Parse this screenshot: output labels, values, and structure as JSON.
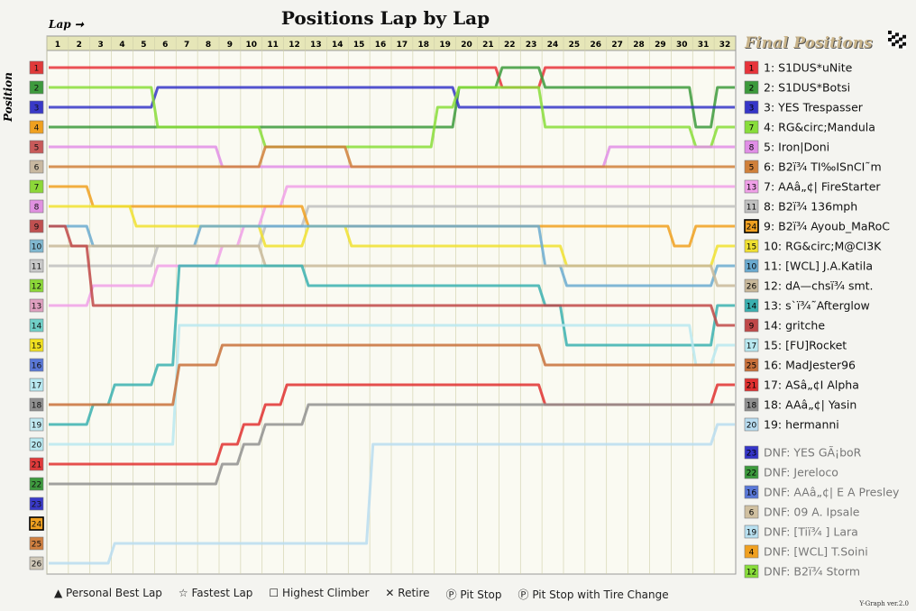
{
  "header": {
    "title": "Positions Lap by Lap",
    "lap_label": "Lap",
    "position_label": "Position",
    "final_title": "Final Positions",
    "version": "Y-Graph ver.2.0"
  },
  "legend": {
    "personal_best": "Personal Best Lap",
    "fastest": "Fastest Lap",
    "climber": "Highest Climber",
    "retire": "Retire",
    "pit": "Pit Stop",
    "pit_tire": "Pit Stop with Tire Change"
  },
  "chart_data": {
    "type": "line",
    "title": "Positions Lap by Lap",
    "xlabel": "Lap",
    "ylabel": "Position",
    "laps": [
      1,
      2,
      3,
      4,
      5,
      6,
      7,
      8,
      9,
      10,
      11,
      12,
      13,
      14,
      15,
      16,
      17,
      18,
      19,
      20,
      21,
      22,
      23,
      24,
      25,
      26,
      27,
      28,
      29,
      30,
      31,
      32
    ],
    "position_labels": [
      1,
      2,
      3,
      4,
      5,
      6,
      7,
      8,
      9,
      10,
      11,
      12,
      13,
      14,
      15,
      16,
      17,
      18,
      19,
      20,
      21,
      22,
      23,
      24,
      25,
      26
    ],
    "start_colors": [
      "#e03a3a",
      "#3e9a3e",
      "#3939c8",
      "#f0a020",
      "#c85a5a",
      "#c8b8a0",
      "#8cd838",
      "#e090e0",
      "#c05050",
      "#80b8d0",
      "#c8c8c8",
      "#8cd838",
      "#e0a0c0",
      "#70d0c8",
      "#f0e020",
      "#5a78d8",
      "#b8e8f0",
      "#909090",
      "#c0e8f0",
      "#b8e8f0",
      "#e03a3a",
      "#3e9a3e",
      "#3939c8",
      "#f0a020",
      "#d08040",
      "#d0c8b8"
    ],
    "start_boxed": 24,
    "series": [
      {
        "name": "S1DUS*uNite",
        "color": "#e8333a",
        "pos": [
          1,
          1,
          1,
          1,
          1,
          1,
          1,
          1,
          1,
          1,
          1,
          1,
          1,
          1,
          1,
          1,
          1,
          1,
          1,
          1,
          1,
          2,
          2,
          1,
          1,
          1,
          1,
          1,
          1,
          1,
          1,
          1
        ]
      },
      {
        "name": "S1DUS*Botsi",
        "color": "#3c9a3c",
        "pos": [
          4,
          4,
          4,
          4,
          4,
          4,
          4,
          4,
          4,
          4,
          4,
          4,
          4,
          4,
          4,
          4,
          4,
          4,
          4,
          2,
          2,
          1,
          1,
          2,
          2,
          2,
          2,
          2,
          2,
          2,
          4,
          2
        ]
      },
      {
        "name": "YES Trespasser",
        "color": "#3535c8",
        "pos": [
          3,
          3,
          3,
          3,
          3,
          2,
          2,
          2,
          2,
          2,
          2,
          2,
          2,
          2,
          2,
          2,
          2,
          2,
          2,
          3,
          3,
          3,
          3,
          3,
          3,
          3,
          3,
          3,
          3,
          3,
          3,
          3
        ]
      },
      {
        "name": "RG&circ;Mandula",
        "color": "#88dd3a",
        "pos": [
          2,
          2,
          2,
          2,
          2,
          4,
          4,
          4,
          4,
          4,
          5,
          5,
          5,
          5,
          5,
          5,
          5,
          5,
          3,
          2,
          2,
          2,
          2,
          4,
          4,
          4,
          4,
          4,
          4,
          4,
          5,
          4
        ]
      },
      {
        "name": "Iron|Doni",
        "color": "#e08ee6",
        "pos": [
          5,
          5,
          5,
          5,
          5,
          5,
          5,
          5,
          6,
          6,
          6,
          6,
          6,
          6,
          6,
          6,
          6,
          6,
          6,
          6,
          6,
          6,
          6,
          6,
          6,
          6,
          5,
          5,
          5,
          5,
          5,
          5
        ]
      },
      {
        "name": "B2ï¾ TI‰ISnCI˜m",
        "color": "#d0803a",
        "pos": [
          6,
          6,
          6,
          6,
          6,
          6,
          6,
          6,
          6,
          6,
          5,
          5,
          5,
          5,
          6,
          6,
          6,
          6,
          6,
          6,
          6,
          6,
          6,
          6,
          6,
          6,
          6,
          6,
          6,
          6,
          6,
          6
        ]
      },
      {
        "name": "AAâ„¢| FireStarter",
        "color": "#f0a0e8",
        "pos": [
          13,
          13,
          12,
          12,
          12,
          11,
          11,
          11,
          10,
          9,
          8,
          7,
          7,
          7,
          7,
          7,
          7,
          7,
          7,
          7,
          7,
          7,
          7,
          7,
          7,
          7,
          7,
          7,
          7,
          7,
          7,
          7
        ]
      },
      {
        "name": "B2ï¾ 136mph",
        "color": "#c0c0c0",
        "pos": [
          11,
          11,
          11,
          11,
          11,
          10,
          10,
          10,
          10,
          10,
          9,
          9,
          8,
          8,
          8,
          8,
          8,
          8,
          8,
          8,
          8,
          8,
          8,
          8,
          8,
          8,
          8,
          8,
          8,
          8,
          8,
          8
        ]
      },
      {
        "name": "B2ï¾ Ayoub_MaRoC",
        "color": "#f0a020",
        "pos": [
          7,
          7,
          8,
          8,
          8,
          8,
          8,
          8,
          8,
          8,
          8,
          8,
          9,
          9,
          9,
          9,
          9,
          9,
          9,
          9,
          9,
          9,
          9,
          9,
          9,
          9,
          9,
          9,
          9,
          10,
          9,
          9
        ]
      },
      {
        "name": "RG&circ;M@CI3K",
        "color": "#f0e030",
        "pos": [
          8,
          8,
          8,
          8,
          9,
          9,
          9,
          9,
          9,
          9,
          10,
          10,
          9,
          9,
          10,
          10,
          10,
          10,
          10,
          10,
          10,
          10,
          10,
          10,
          11,
          11,
          11,
          11,
          11,
          11,
          11,
          10
        ]
      },
      {
        "name": "[WCL] J.A.Katila",
        "color": "#6aaad0",
        "pos": [
          9,
          9,
          10,
          10,
          10,
          10,
          10,
          9,
          9,
          9,
          9,
          9,
          9,
          9,
          9,
          9,
          9,
          9,
          9,
          9,
          9,
          9,
          9,
          11,
          12,
          12,
          12,
          12,
          12,
          12,
          12,
          11
        ]
      },
      {
        "name": "dA—chsï¾ smt.",
        "color": "#c8b89a",
        "pos": [
          10,
          10,
          10,
          10,
          10,
          10,
          10,
          10,
          10,
          10,
          11,
          11,
          11,
          11,
          11,
          11,
          11,
          11,
          11,
          11,
          11,
          11,
          11,
          11,
          11,
          11,
          11,
          11,
          11,
          11,
          11,
          12
        ]
      },
      {
        "name": "s`ï¾˜Afterglow",
        "color": "#3ab0b0",
        "pos": [
          19,
          19,
          18,
          17,
          17,
          16,
          11,
          11,
          11,
          11,
          11,
          11,
          12,
          12,
          12,
          12,
          12,
          12,
          12,
          12,
          12,
          12,
          12,
          13,
          15,
          15,
          15,
          15,
          15,
          15,
          15,
          13
        ]
      },
      {
        "name": "gritche",
        "color": "#c04848",
        "pos": [
          9,
          10,
          13,
          13,
          13,
          13,
          13,
          13,
          13,
          13,
          13,
          13,
          13,
          13,
          13,
          13,
          13,
          13,
          13,
          13,
          13,
          13,
          13,
          13,
          13,
          13,
          13,
          13,
          13,
          13,
          13,
          14
        ]
      },
      {
        "name": "[FU]Rocket",
        "color": "#b8e8f0",
        "pos": [
          20,
          20,
          20,
          20,
          20,
          20,
          14,
          14,
          14,
          14,
          14,
          14,
          14,
          14,
          14,
          14,
          14,
          14,
          14,
          14,
          14,
          14,
          14,
          14,
          14,
          14,
          14,
          14,
          14,
          14,
          16,
          15
        ]
      },
      {
        "name": "MadJester96",
        "color": "#c8703a",
        "pos": [
          18,
          18,
          18,
          18,
          18,
          18,
          16,
          16,
          15,
          15,
          15,
          15,
          15,
          15,
          15,
          15,
          15,
          15,
          15,
          15,
          15,
          15,
          15,
          16,
          16,
          16,
          16,
          16,
          16,
          16,
          16,
          16
        ]
      },
      {
        "name": "ASâ„¢I Alpha",
        "color": "#e03030",
        "pos": [
          21,
          21,
          21,
          21,
          21,
          21,
          21,
          21,
          20,
          19,
          18,
          17,
          17,
          17,
          17,
          17,
          17,
          17,
          17,
          17,
          17,
          17,
          17,
          18,
          18,
          18,
          18,
          18,
          18,
          18,
          18,
          17
        ]
      },
      {
        "name": "AAâ„¢| Yasin",
        "color": "#909090",
        "pos": [
          22,
          22,
          22,
          22,
          22,
          22,
          22,
          22,
          21,
          20,
          19,
          19,
          18,
          18,
          18,
          18,
          18,
          18,
          18,
          18,
          18,
          18,
          18,
          18,
          18,
          18,
          18,
          18,
          18,
          18,
          18,
          18
        ]
      },
      {
        "name": "hermanni",
        "color": "#b8dcf0",
        "pos": [
          26,
          26,
          26,
          25,
          25,
          25,
          25,
          25,
          25,
          25,
          25,
          25,
          25,
          25,
          25,
          20,
          20,
          20,
          20,
          20,
          20,
          20,
          20,
          20,
          20,
          20,
          20,
          20,
          20,
          20,
          20,
          19
        ]
      }
    ],
    "dnf": [
      {
        "name": "YES GÃ¡boR",
        "color": "#3535c8",
        "label": "23"
      },
      {
        "name": "Jereloco",
        "color": "#3c9a3c",
        "label": "22"
      },
      {
        "name": "AAâ„¢| E A Presley",
        "color": "#5a78d8",
        "label": "16"
      },
      {
        "name": "09 A. Ipsale",
        "color": "#d0c0a0",
        "label": "6"
      },
      {
        "name": "[Tiï¾ ] Lara",
        "color": "#b8e0f0",
        "label": "19"
      },
      {
        "name": "[WCL] T.Soini",
        "color": "#f0a020",
        "label": "4"
      },
      {
        "name": "B2ï¾ Storm",
        "color": "#88dd3a",
        "label": "12"
      }
    ],
    "final_list": [
      {
        "box": "1",
        "text": "1: S1DUS*uNite",
        "color": "#e8333a"
      },
      {
        "box": "2",
        "text": "2: S1DUS*Botsi",
        "color": "#3c9a3c"
      },
      {
        "box": "3",
        "text": "3: YES Trespasser",
        "color": "#3535c8"
      },
      {
        "box": "7",
        "text": "4: RG&circ;Mandula",
        "color": "#88dd3a"
      },
      {
        "box": "8",
        "text": "5: Iron|Doni",
        "color": "#e08ee6"
      },
      {
        "box": "5",
        "text": "6: B2ï¾ TI‰ISnCI˜m",
        "color": "#d0803a"
      },
      {
        "box": "13",
        "text": "7: AAâ„¢| FireStarter",
        "color": "#f0a0e8"
      },
      {
        "box": "11",
        "text": "8: B2ï¾ 136mph",
        "color": "#c0c0c0"
      },
      {
        "box": "24",
        "text": "9: B2ï¾ Ayoub_MaRoC",
        "color": "#f0a020",
        "boxed": true
      },
      {
        "box": "15",
        "text": "10: RG&circ;M@CI3K",
        "color": "#f0e030"
      },
      {
        "box": "10",
        "text": "11: [WCL] J.A.Katila",
        "color": "#6aaad0"
      },
      {
        "box": "26",
        "text": "12: dA—chsï¾ smt.",
        "color": "#c8b89a"
      },
      {
        "box": "14",
        "text": "13: s`ï¾˜Afterglow",
        "color": "#3ab0b0"
      },
      {
        "box": "9",
        "text": "14: gritche",
        "color": "#c04848"
      },
      {
        "box": "17",
        "text": "15: [FU]Rocket",
        "color": "#b8e8f0"
      },
      {
        "box": "25",
        "text": "16: MadJester96",
        "color": "#c8703a"
      },
      {
        "box": "21",
        "text": "17: ASâ„¢I Alpha",
        "color": "#e03030"
      },
      {
        "box": "18",
        "text": "18: AAâ„¢| Yasin",
        "color": "#909090"
      },
      {
        "box": "20",
        "text": "19: hermanni",
        "color": "#b8dcf0"
      }
    ],
    "dnf_prefix": "DNF:"
  }
}
